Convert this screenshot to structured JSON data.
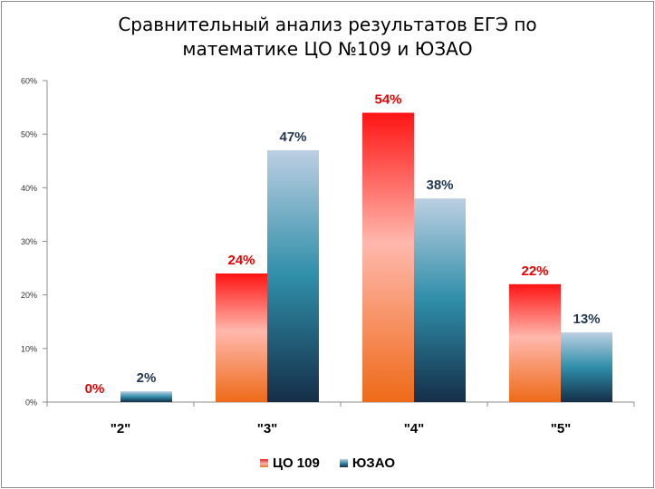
{
  "chart_data": {
    "type": "bar",
    "title_lines": [
      "Сравнительный анализ результатов ЕГЭ по",
      "математике ЦО №109 и ЮЗАО"
    ],
    "categories": [
      "\"2\"",
      "\"3\"",
      "\"4\"",
      "\"5\""
    ],
    "series": [
      {
        "name": "ЦО 109",
        "values": [
          0,
          24,
          54,
          22
        ],
        "labels": [
          "0%",
          "24%",
          "54%",
          "22%"
        ],
        "label_color": "#e60000"
      },
      {
        "name": "ЮЗАО",
        "values": [
          2,
          47,
          38,
          13
        ],
        "labels": [
          "2%",
          "47%",
          "38%",
          "13%"
        ],
        "label_color": "#1f3550"
      }
    ],
    "ylim": [
      0,
      60
    ],
    "y_ticks": [
      "0%",
      "10%",
      "20%",
      "30%",
      "40%",
      "50%",
      "60%"
    ],
    "grid": false,
    "legend_position": "bottom"
  }
}
